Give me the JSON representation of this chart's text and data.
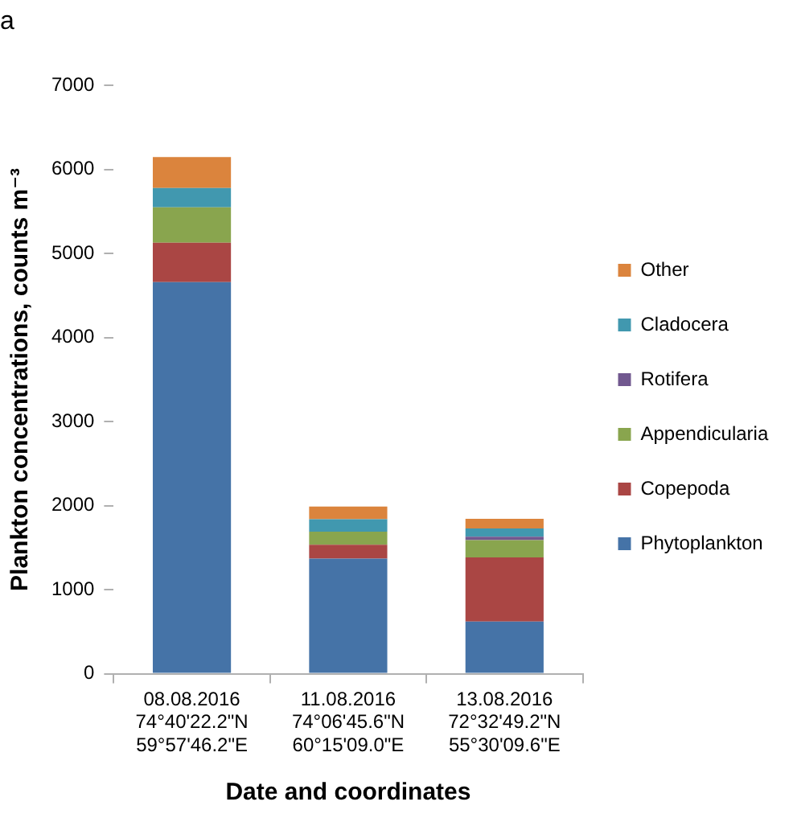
{
  "chart_data": {
    "type": "bar",
    "title": "a",
    "xlabel": "Date and coordinates",
    "ylabel": "Plankton concentrations, counts m⁻³",
    "categories": [
      "08.08.2016\n74°40'22.2\"N\n59°57'46.2\"E",
      "11.08.2016\n74°06'45.6\"N\n60°15'09.0\"E",
      "13.08.2016\n72°32'49.2\"N\n55°30'09.6\"E"
    ],
    "stacked": true,
    "legend": "right",
    "grid": false,
    "ylim": [
      0,
      7000
    ],
    "yticks": [
      0,
      1000,
      2000,
      3000,
      4000,
      5000,
      6000,
      7000
    ],
    "series": [
      {
        "name": "Phytoplankton",
        "color": "#4573a7",
        "values": [
          4660,
          1370,
          620
        ]
      },
      {
        "name": "Copepoda",
        "color": "#aa4644",
        "values": [
          470,
          165,
          765
        ]
      },
      {
        "name": "Appendicularia",
        "color": "#89a54e",
        "values": [
          420,
          155,
          205
        ]
      },
      {
        "name": "Rotifera",
        "color": "#71588f",
        "values": [
          0,
          0,
          40
        ]
      },
      {
        "name": "Cladocera",
        "color": "#4198af",
        "values": [
          230,
          150,
          100
        ]
      },
      {
        "name": "Other",
        "color": "#db843d",
        "values": [
          370,
          150,
          115
        ]
      }
    ]
  }
}
